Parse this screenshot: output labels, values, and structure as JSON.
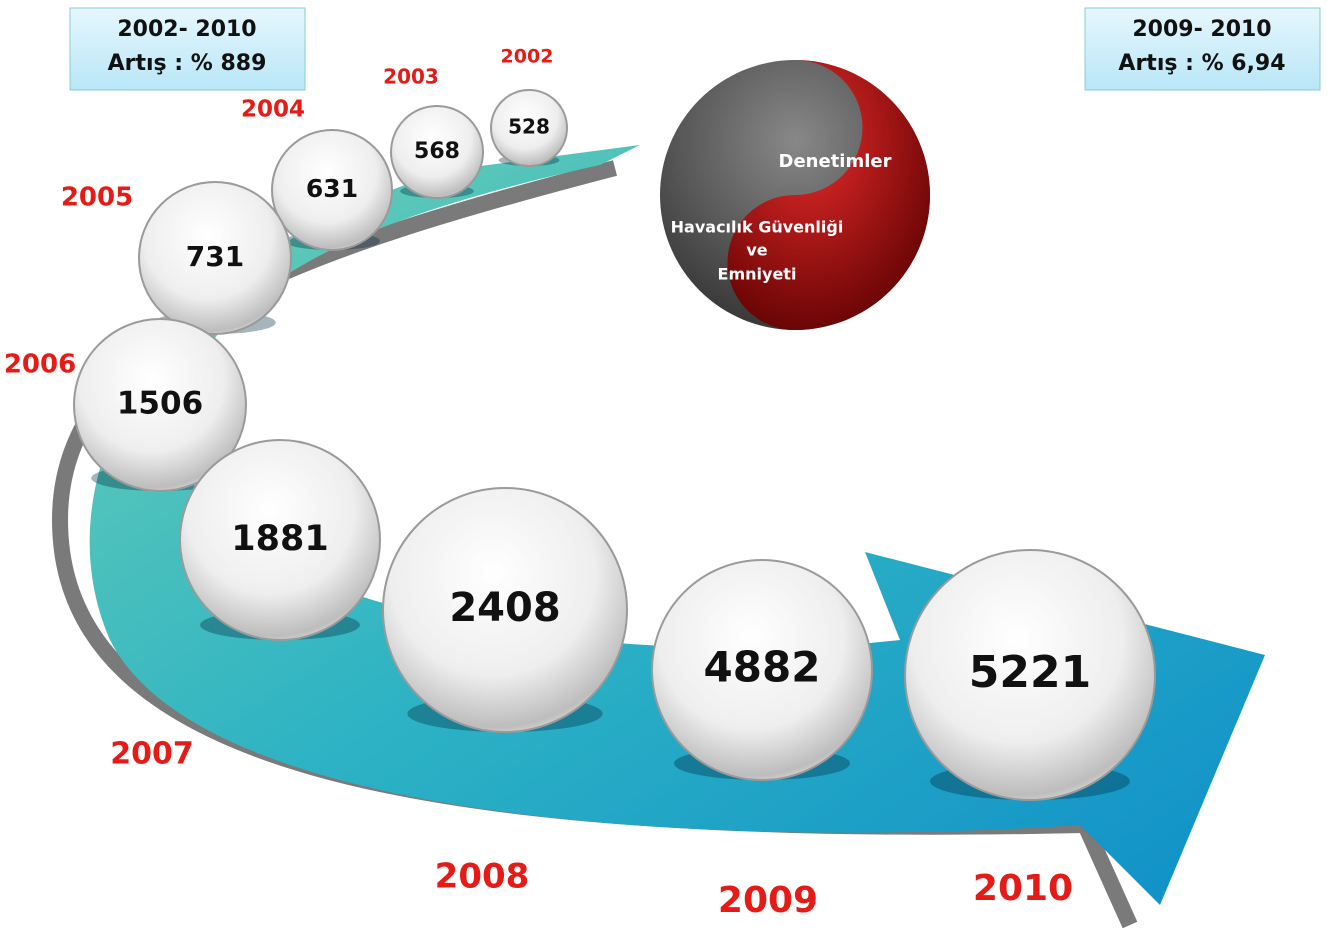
{
  "boxes": [
    {
      "line1": "2002- 2010",
      "line2": "Artış : % 889"
    },
    {
      "line1": "2009- 2010",
      "line2": "Artış : % 6,94"
    }
  ],
  "items": [
    {
      "year": 2002,
      "value": 528
    },
    {
      "year": 2003,
      "value": 568
    },
    {
      "year": 2004,
      "value": 631
    },
    {
      "year": 2005,
      "value": 731
    },
    {
      "year": 2006,
      "value": 1506
    },
    {
      "year": 2007,
      "value": 1881
    },
    {
      "year": 2008,
      "value": 2408
    },
    {
      "year": 2009,
      "value": 4882
    },
    {
      "year": 2010,
      "value": 5221
    }
  ],
  "emblem": {
    "right": "Denetimler",
    "left_line1": "Havacılık Güvenliği",
    "left_line2": "ve",
    "left_line3": "Emniyeti"
  }
}
